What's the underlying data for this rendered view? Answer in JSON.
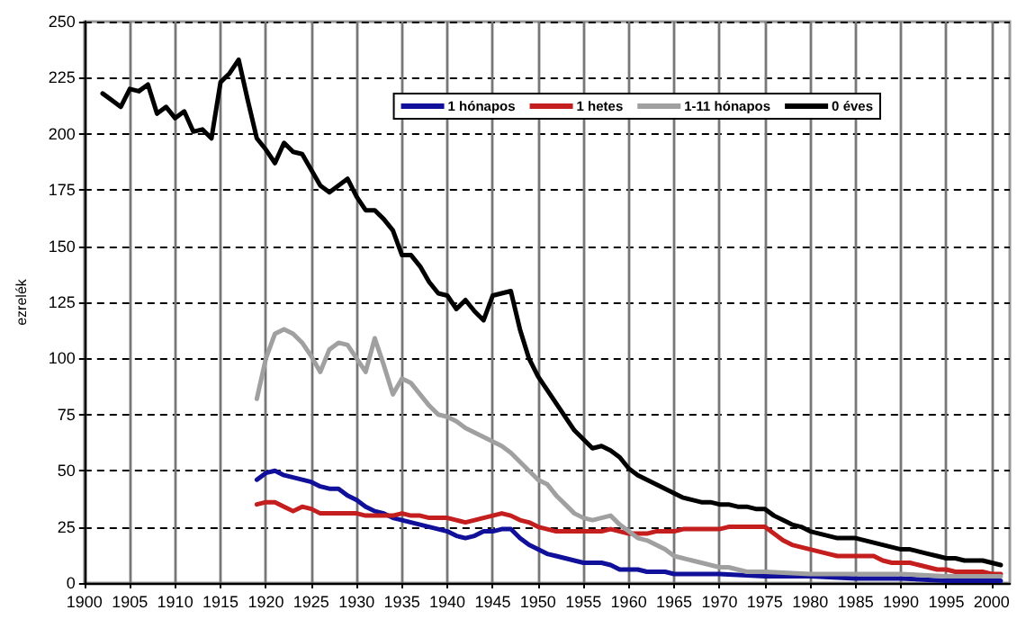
{
  "chart_data": {
    "type": "line",
    "ylabel": "ezrelék",
    "xlim": [
      1900,
      2002
    ],
    "xticks": [
      1900,
      1905,
      1910,
      1915,
      1920,
      1925,
      1930,
      1935,
      1940,
      1945,
      1950,
      1955,
      1960,
      1965,
      1970,
      1975,
      1980,
      1985,
      1990,
      1995,
      2000
    ],
    "ylim": [
      0,
      250
    ],
    "yticks": [
      0,
      25,
      50,
      75,
      100,
      125,
      150,
      175,
      200,
      225,
      250
    ],
    "grid": true,
    "legend": "top right",
    "marker": "none",
    "line_style": "solid",
    "series": [
      {
        "name": "1 hónapos",
        "color": "#10109a",
        "x": [
          1919,
          1920,
          1921,
          1922,
          1923,
          1924,
          1925,
          1926,
          1927,
          1928,
          1929,
          1930,
          1931,
          1932,
          1933,
          1934,
          1935,
          1936,
          1937,
          1938,
          1939,
          1940,
          1941,
          1942,
          1943,
          1944,
          1945,
          1946,
          1947,
          1948,
          1949,
          1950,
          1951,
          1952,
          1953,
          1954,
          1955,
          1956,
          1957,
          1958,
          1959,
          1960,
          1961,
          1962,
          1963,
          1964,
          1965,
          1966,
          1970,
          1975,
          1980,
          1985,
          1990,
          1995,
          2000,
          2001
        ],
        "values": [
          46,
          49,
          50,
          48,
          47,
          46,
          45,
          43,
          42,
          42,
          39,
          37,
          34,
          32,
          31,
          29,
          28,
          27,
          26,
          25,
          24,
          23,
          21,
          20,
          21,
          23,
          23,
          24,
          24,
          20,
          17,
          15,
          13,
          12,
          11,
          10,
          9,
          9,
          9,
          8,
          6,
          6,
          6,
          5,
          5,
          5,
          4,
          4,
          4,
          3,
          3,
          2,
          2,
          1,
          1,
          1
        ]
      },
      {
        "name": "1 hetes",
        "color": "#c41e1e",
        "x": [
          1919,
          1920,
          1921,
          1922,
          1923,
          1924,
          1925,
          1926,
          1927,
          1928,
          1929,
          1930,
          1931,
          1932,
          1933,
          1934,
          1935,
          1936,
          1937,
          1938,
          1939,
          1940,
          1941,
          1942,
          1943,
          1944,
          1945,
          1946,
          1947,
          1948,
          1949,
          1950,
          1951,
          1952,
          1953,
          1954,
          1955,
          1956,
          1957,
          1958,
          1959,
          1960,
          1961,
          1962,
          1963,
          1964,
          1965,
          1966,
          1967,
          1968,
          1969,
          1970,
          1971,
          1972,
          1973,
          1974,
          1975,
          1976,
          1977,
          1978,
          1979,
          1980,
          1981,
          1982,
          1983,
          1984,
          1985,
          1986,
          1987,
          1988,
          1989,
          1990,
          1991,
          1992,
          1993,
          1994,
          1995,
          1996,
          1997,
          1998,
          1999,
          2000,
          2001
        ],
        "values": [
          35,
          36,
          36,
          34,
          32,
          34,
          33,
          31,
          31,
          31,
          31,
          31,
          30,
          30,
          30,
          30,
          31,
          30,
          30,
          29,
          29,
          29,
          28,
          27,
          28,
          29,
          30,
          31,
          30,
          28,
          27,
          25,
          24,
          23,
          23,
          23,
          23,
          23,
          23,
          24,
          23,
          22,
          22,
          22,
          23,
          23,
          23,
          24,
          24,
          24,
          24,
          24,
          25,
          25,
          25,
          25,
          25,
          22,
          19,
          17,
          16,
          15,
          14,
          13,
          12,
          12,
          12,
          12,
          12,
          10,
          9,
          9,
          9,
          8,
          7,
          6,
          6,
          5,
          5,
          5,
          5,
          4,
          4
        ]
      },
      {
        "name": "1-11 hónapos",
        "color": "#a0a0a0",
        "x": [
          1919,
          1920,
          1921,
          1922,
          1923,
          1924,
          1925,
          1926,
          1927,
          1928,
          1929,
          1930,
          1931,
          1932,
          1933,
          1934,
          1935,
          1936,
          1937,
          1938,
          1939,
          1940,
          1941,
          1942,
          1943,
          1944,
          1945,
          1946,
          1947,
          1948,
          1949,
          1950,
          1951,
          1952,
          1953,
          1954,
          1955,
          1956,
          1957,
          1958,
          1959,
          1960,
          1961,
          1962,
          1963,
          1964,
          1965,
          1966,
          1967,
          1968,
          1969,
          1970,
          1971,
          1972,
          1973,
          1974,
          1975,
          1980,
          1985,
          1990,
          1995,
          2000,
          2001
        ],
        "values": [
          82,
          100,
          111,
          113,
          111,
          107,
          101,
          94,
          104,
          107,
          106,
          100,
          94,
          109,
          97,
          84,
          91,
          89,
          84,
          79,
          75,
          74,
          72,
          69,
          67,
          65,
          63,
          61,
          58,
          54,
          50,
          46,
          44,
          39,
          35,
          31,
          29,
          28,
          29,
          30,
          26,
          23,
          20,
          19,
          17,
          15,
          12,
          11,
          10,
          9,
          8,
          7,
          7,
          6,
          5,
          5,
          5,
          4,
          4,
          4,
          3,
          3,
          3
        ]
      },
      {
        "name": "0 éves",
        "color": "#000000",
        "x": [
          1902,
          1903,
          1904,
          1905,
          1906,
          1907,
          1908,
          1909,
          1910,
          1911,
          1912,
          1913,
          1914,
          1915,
          1916,
          1917,
          1918,
          1919,
          1920,
          1921,
          1922,
          1923,
          1924,
          1925,
          1926,
          1927,
          1928,
          1929,
          1930,
          1931,
          1932,
          1933,
          1934,
          1935,
          1936,
          1937,
          1938,
          1939,
          1940,
          1941,
          1942,
          1943,
          1944,
          1945,
          1946,
          1947,
          1948,
          1949,
          1950,
          1951,
          1952,
          1953,
          1954,
          1955,
          1956,
          1957,
          1958,
          1959,
          1960,
          1961,
          1962,
          1963,
          1964,
          1965,
          1966,
          1967,
          1968,
          1969,
          1970,
          1971,
          1972,
          1973,
          1974,
          1975,
          1976,
          1977,
          1978,
          1979,
          1980,
          1981,
          1982,
          1983,
          1984,
          1985,
          1986,
          1987,
          1988,
          1989,
          1990,
          1991,
          1992,
          1993,
          1994,
          1995,
          1996,
          1997,
          1998,
          1999,
          2000,
          2001
        ],
        "values": [
          218,
          215,
          212,
          220,
          219,
          222,
          209,
          212,
          207,
          210,
          201,
          202,
          198,
          223,
          227,
          233,
          215,
          198,
          193,
          187,
          196,
          192,
          191,
          184,
          177,
          174,
          177,
          180,
          172,
          166,
          166,
          162,
          157,
          146,
          146,
          141,
          134,
          129,
          128,
          122,
          126,
          121,
          117,
          128,
          129,
          130,
          113,
          100,
          92,
          86,
          80,
          74,
          68,
          64,
          60,
          61,
          59,
          56,
          51,
          48,
          46,
          44,
          42,
          40,
          38,
          37,
          36,
          36,
          35,
          35,
          34,
          34,
          33,
          33,
          30,
          28,
          26,
          25,
          23,
          22,
          21,
          20,
          20,
          20,
          19,
          18,
          17,
          16,
          15,
          15,
          14,
          13,
          12,
          11,
          11,
          10,
          10,
          10,
          9,
          8
        ]
      }
    ]
  }
}
